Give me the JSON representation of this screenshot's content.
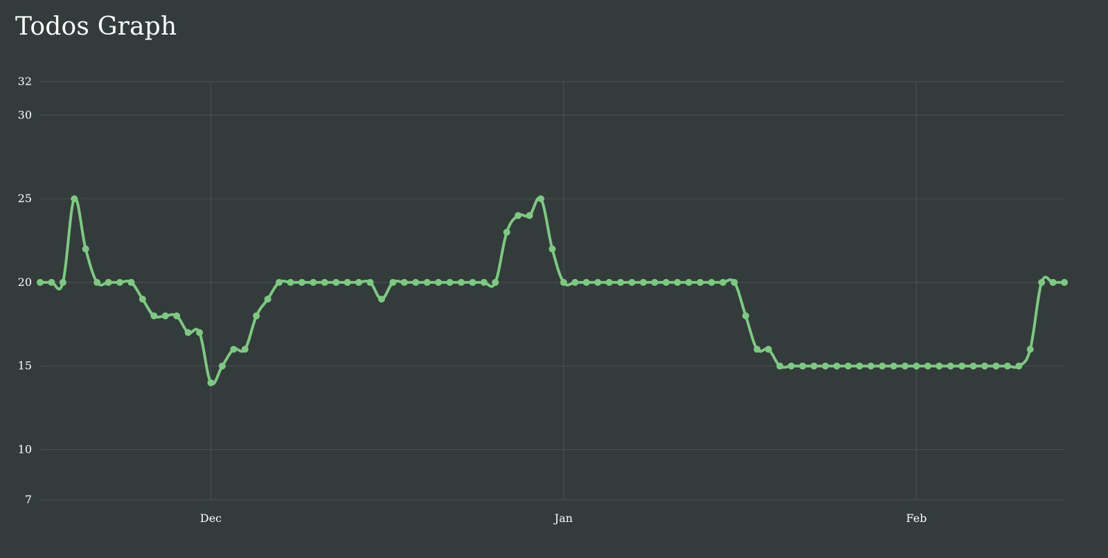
{
  "page": {
    "title": "Todos Graph"
  },
  "chart_data": {
    "type": "line",
    "title": "Todos Graph",
    "xlabel": "",
    "ylabel": "",
    "yticks": [
      7,
      10,
      15,
      20,
      25,
      30,
      32
    ],
    "ylim": [
      7,
      32
    ],
    "xticks": [
      {
        "date": "Dec",
        "index": 15
      },
      {
        "date": "Jan",
        "index": 46
      },
      {
        "date": "Feb",
        "index": 77
      }
    ],
    "grid": true,
    "colors": {
      "background": "#343b3b",
      "grid": "#4a5252",
      "line": "#7ec883",
      "text": "#ffffff"
    },
    "series": [
      {
        "values": [
          20,
          20,
          20,
          25,
          22,
          20,
          20,
          20,
          20,
          19,
          18,
          18,
          18,
          17,
          17,
          14,
          15,
          16,
          16,
          18,
          19,
          20,
          20,
          20,
          20,
          20,
          20,
          20,
          20,
          20,
          19,
          20,
          20,
          20,
          20,
          20,
          20,
          20,
          20,
          20,
          20,
          23,
          24,
          24,
          25,
          22,
          20,
          20,
          20,
          20,
          20,
          20,
          20,
          20,
          20,
          20,
          20,
          20,
          20,
          20,
          20,
          20,
          18,
          16,
          16,
          15,
          15,
          15,
          15,
          15,
          15,
          15,
          15,
          15,
          15,
          15,
          15,
          15,
          15,
          15,
          15,
          15,
          15,
          15,
          15,
          15,
          15,
          16,
          20,
          20,
          20
        ]
      }
    ]
  }
}
